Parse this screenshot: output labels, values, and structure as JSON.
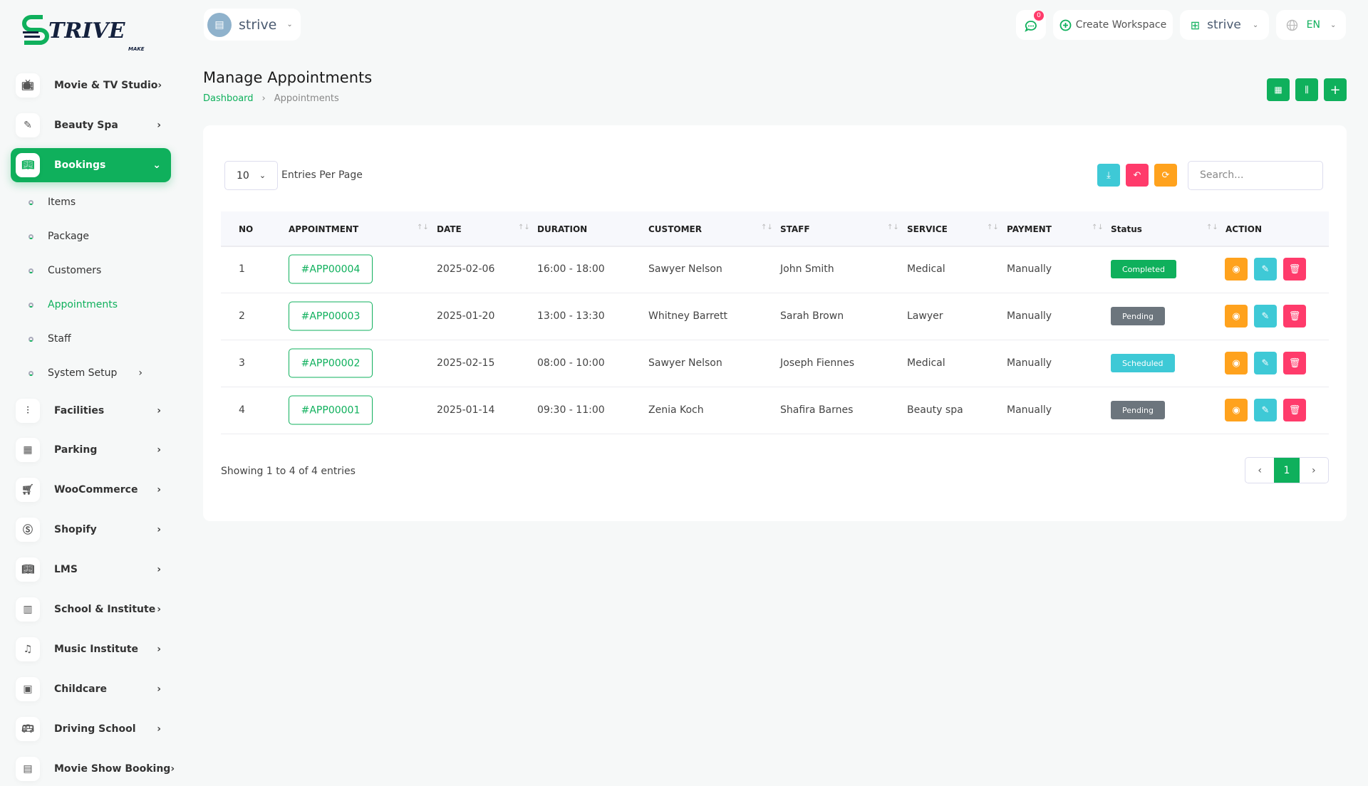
{
  "brand": {
    "logo_text": "STRIVE",
    "logo_sub": "MAKE",
    "primary": "#0fb05c"
  },
  "topbar": {
    "workspace": "strive",
    "notif_count": "0",
    "create_workspace": "Create Workspace",
    "account": "strive",
    "language": "EN"
  },
  "sidebar": {
    "items": [
      {
        "label": "Movie & TV Studio",
        "icon": "tv-icon"
      },
      {
        "label": "Beauty Spa",
        "icon": "brush-icon"
      },
      {
        "label": "Bookings",
        "icon": "book-icon",
        "active": true
      },
      {
        "label": "Facilities",
        "icon": "sliders-icon"
      },
      {
        "label": "Parking",
        "icon": "parking-icon"
      },
      {
        "label": "WooCommerce",
        "icon": "cart-icon"
      },
      {
        "label": "Shopify",
        "icon": "shopify-icon"
      },
      {
        "label": "LMS",
        "icon": "book-open-icon"
      },
      {
        "label": "School & Institute",
        "icon": "school-icon"
      },
      {
        "label": "Music Institute",
        "icon": "music-icon"
      },
      {
        "label": "Childcare",
        "icon": "building-icon"
      },
      {
        "label": "Driving School",
        "icon": "bus-icon"
      },
      {
        "label": "Movie Show Booking",
        "icon": "ticket-icon"
      }
    ],
    "sub_items": [
      {
        "label": "Items"
      },
      {
        "label": "Package"
      },
      {
        "label": "Customers"
      },
      {
        "label": "Appointments",
        "active": true
      },
      {
        "label": "Staff"
      },
      {
        "label": "System Setup",
        "has_children": true
      }
    ]
  },
  "page": {
    "title": "Manage Appointments",
    "breadcrumb": [
      "Dashboard",
      "Appointments"
    ]
  },
  "table": {
    "entries_per_page": "10",
    "entries_label": "Entries Per Page",
    "search_placeholder": "Search...",
    "columns": [
      "NO",
      "APPOINTMENT",
      "DATE",
      "DURATION",
      "CUSTOMER",
      "STAFF",
      "SERVICE",
      "PAYMENT",
      "Status",
      "ACTION"
    ],
    "rows": [
      {
        "no": "1",
        "id": "#APP00004",
        "date": "2025-02-06",
        "duration": "16:00 - 18:00",
        "customer": "Sawyer Nelson",
        "staff": "John Smith",
        "service": "Medical",
        "payment": "Manually",
        "status": "Completed",
        "status_color": "#0fb05c"
      },
      {
        "no": "2",
        "id": "#APP00003",
        "date": "2025-01-20",
        "duration": "13:00 - 13:30",
        "customer": "Whitney Barrett",
        "staff": "Sarah Brown",
        "service": "Lawyer",
        "payment": "Manually",
        "status": "Pending",
        "status_color": "#6c757d"
      },
      {
        "no": "3",
        "id": "#APP00002",
        "date": "2025-02-15",
        "duration": "08:00 - 10:00",
        "customer": "Sawyer Nelson",
        "staff": "Joseph Fiennes",
        "service": "Medical",
        "payment": "Manually",
        "status": "Scheduled",
        "status_color": "#3ec9d6"
      },
      {
        "no": "4",
        "id": "#APP00001",
        "date": "2025-01-14",
        "duration": "09:30 - 11:00",
        "customer": "Zenia Koch",
        "staff": "Shafira Barnes",
        "service": "Beauty spa",
        "payment": "Manually",
        "status": "Pending",
        "status_color": "#6c757d"
      }
    ],
    "showing": "Showing 1 to 4 of 4 entries",
    "current_page": "1"
  }
}
